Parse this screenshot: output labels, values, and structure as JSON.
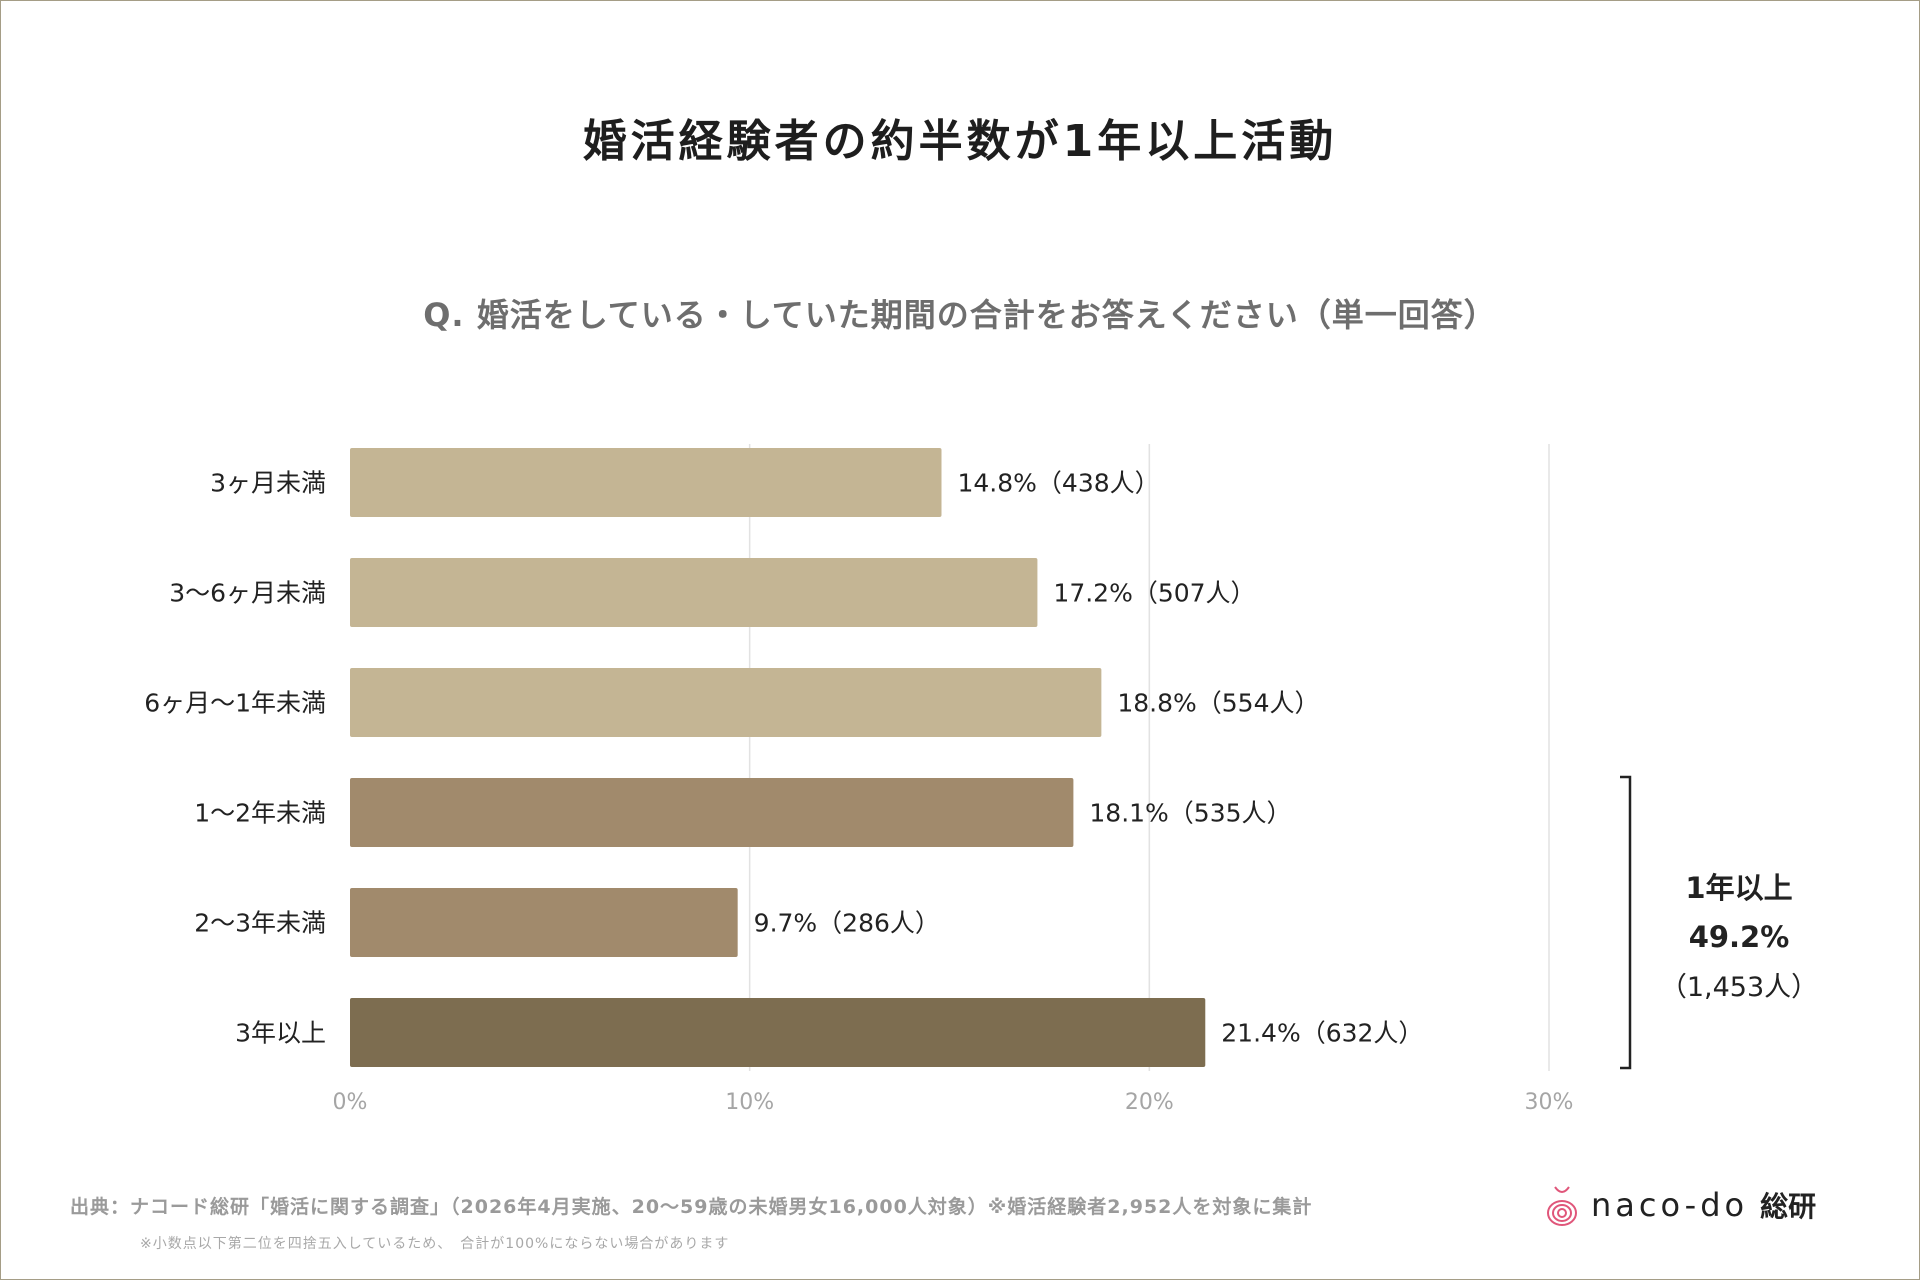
{
  "title": "婚活経験者の約半数が1年以上活動",
  "subtitle": "Q. 婚活をしている・していた期間の合計をお答えください（単一回答）",
  "chart_data": {
    "type": "bar",
    "orientation": "horizontal",
    "categories": [
      "3ヶ月未満",
      "3〜6ヶ月未満",
      "6ヶ月〜1年未満",
      "1〜2年未満",
      "2〜3年未満",
      "3年以上"
    ],
    "values": [
      14.8,
      17.2,
      18.8,
      18.1,
      9.7,
      21.4
    ],
    "counts": [
      438,
      507,
      554,
      535,
      286,
      632
    ],
    "data_labels": [
      "14.8%（438人）",
      "17.2%（507人）",
      "18.8%（554人）",
      "18.1%（535人）",
      "9.7%（286人）",
      "21.4%（632人）"
    ],
    "bar_colors": [
      "#c4b594",
      "#c4b594",
      "#c4b594",
      "#a18a6c",
      "#a18a6c",
      "#7d6d50"
    ],
    "xlim": [
      0,
      30
    ],
    "xticks": [
      "0%",
      "10%",
      "20%",
      "30%"
    ],
    "grid": true,
    "annotation": {
      "label": "1年以上",
      "value": "49.2%",
      "count": "（1,453人）",
      "covers": [
        "1〜2年未満",
        "2〜3年未満",
        "3年以上"
      ]
    }
  },
  "footer": {
    "source": "出典：ナコード総研「婚活に関する調査」（2026年4月実施、20〜59歳の未婚男女16,000人対象）※婚活経験者2,952人を対象に集計",
    "note": "※小数点以下第二位を四捨五入しているため、　合計が100%にならない場合があります"
  },
  "logo": {
    "text": "naco-do",
    "suffix": "総研",
    "accent": "#e0567a"
  }
}
